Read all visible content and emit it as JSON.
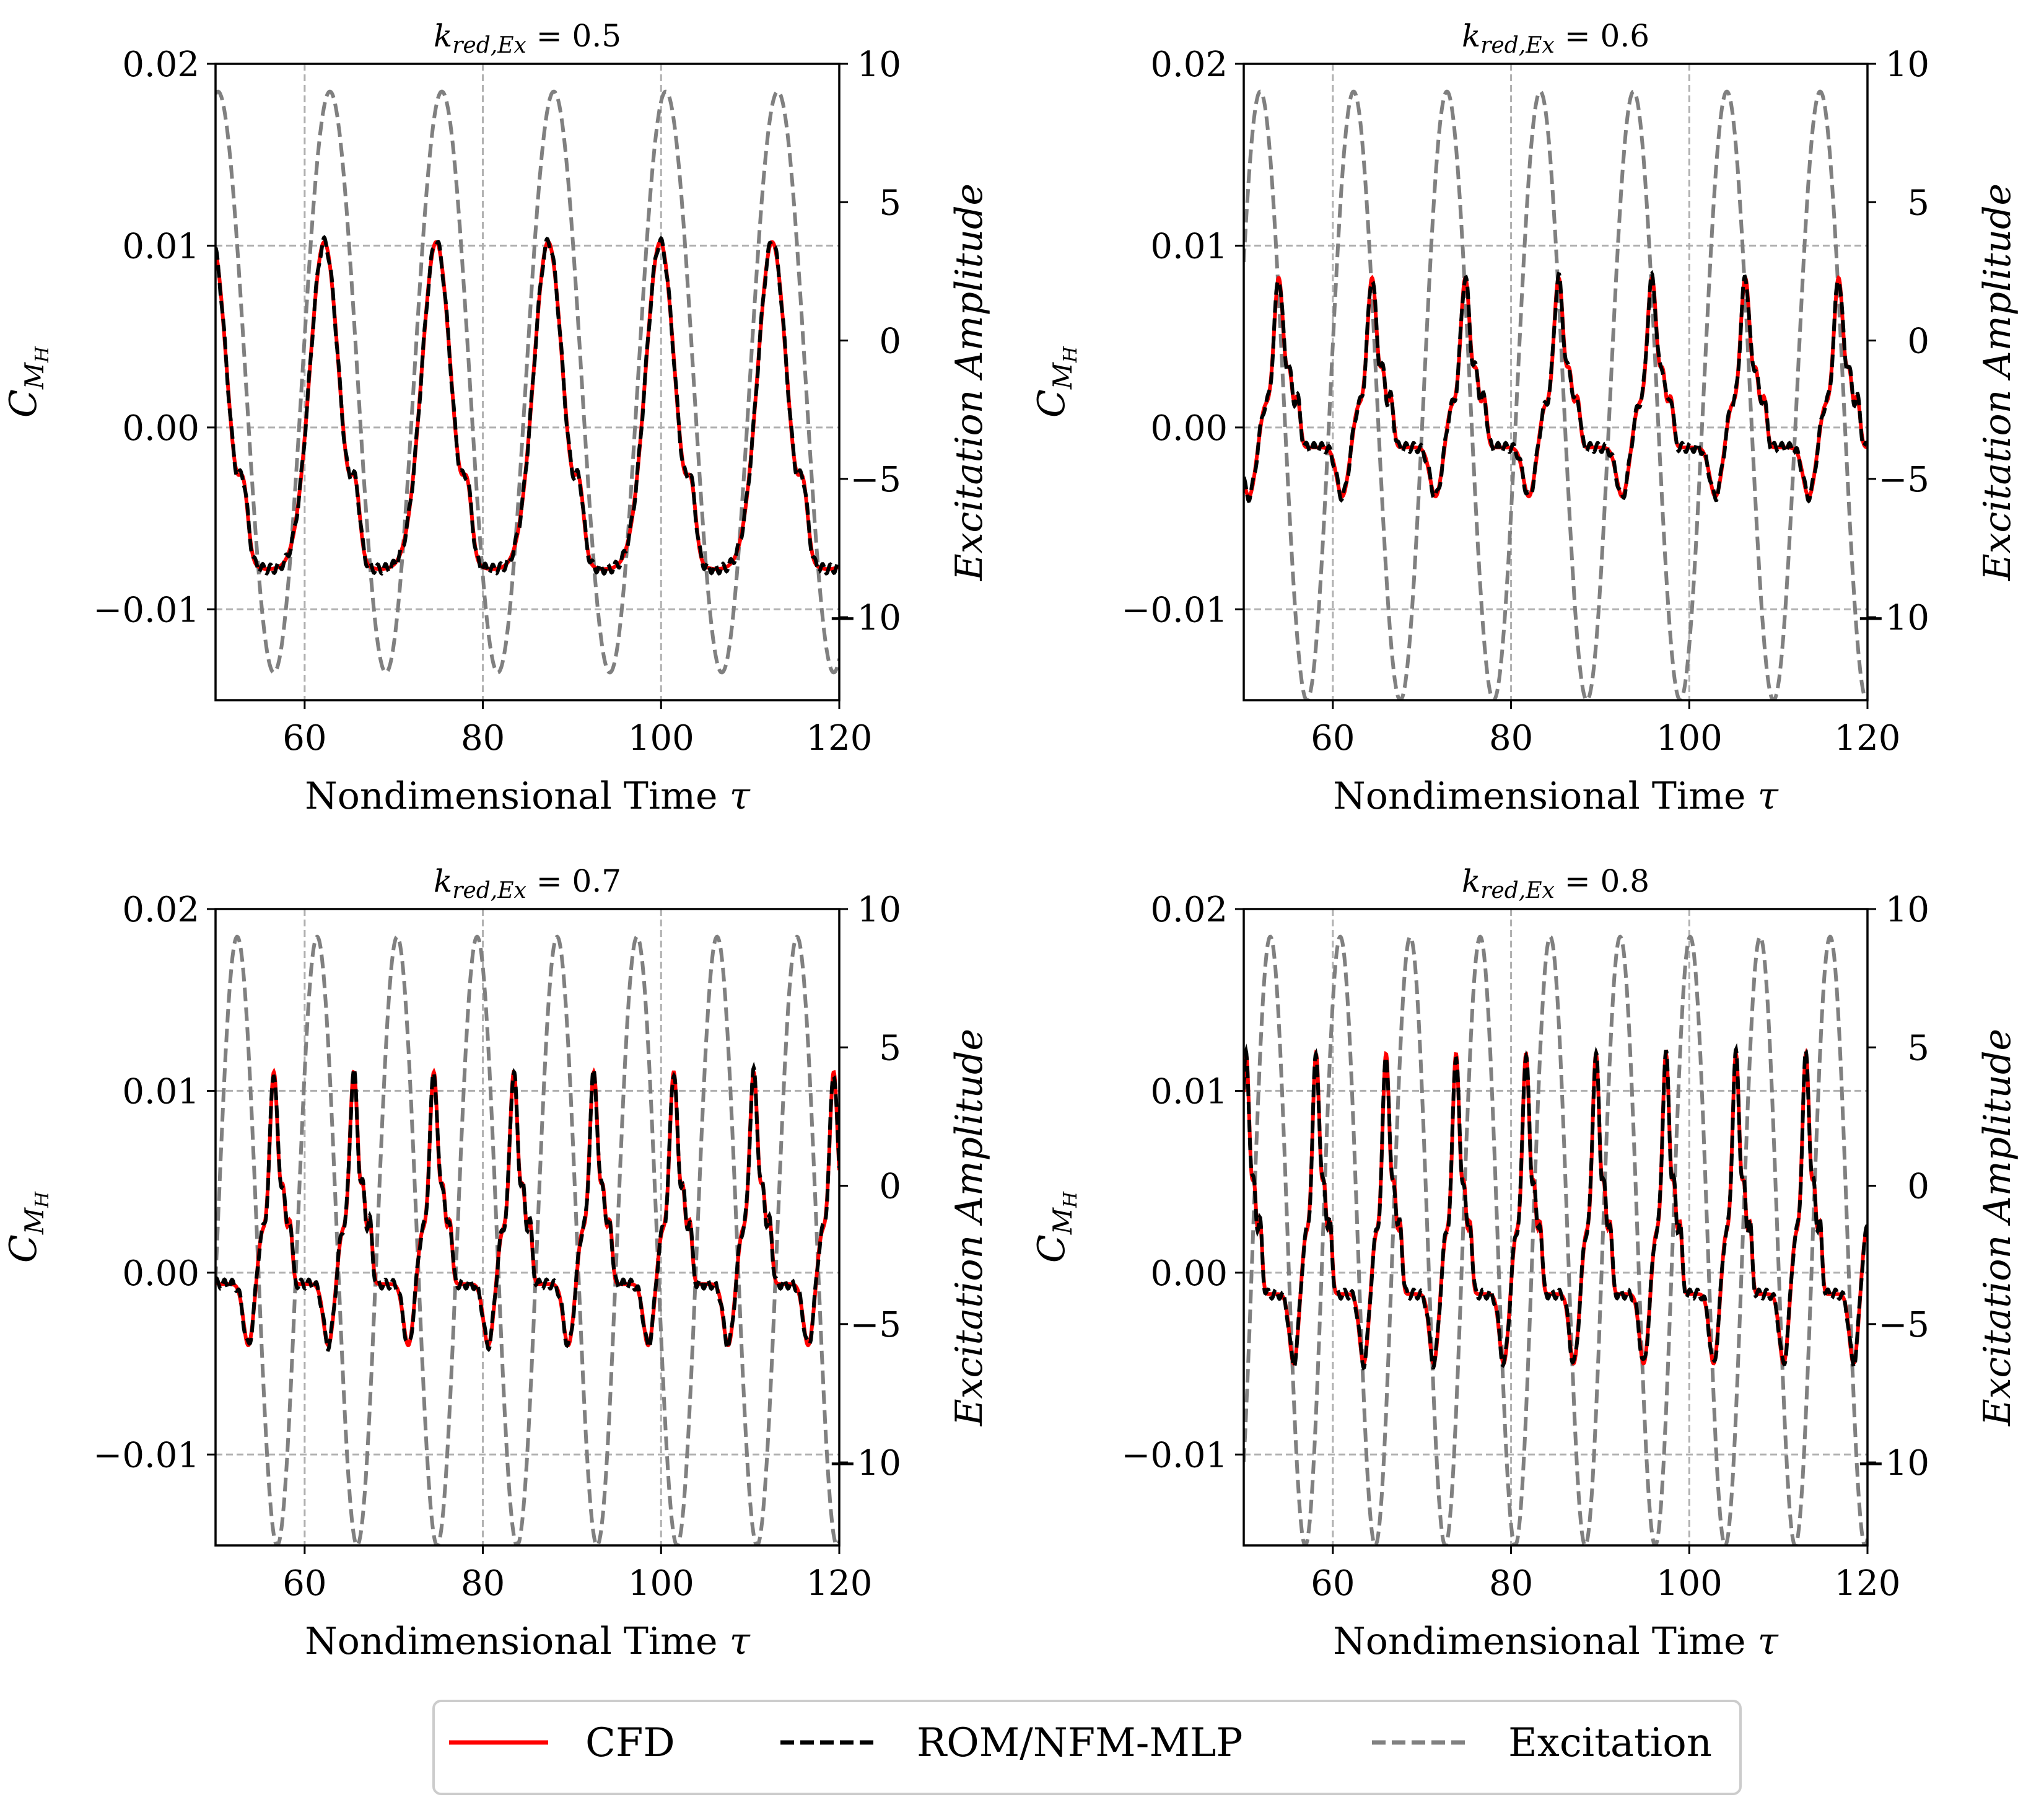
{
  "figure": {
    "xlabel": "Nondimensional Time",
    "xlabel_symbol": "τ",
    "ylabel_main": "C",
    "ylabel_sub": "M",
    "ylabel_subsub": "H",
    "ylabel_right": "Excitation Amplitude",
    "title_prefix": "k",
    "title_sub": "red,Ex",
    "title_eq": " = "
  },
  "legend": {
    "entries": [
      {
        "label": "CFD",
        "color": "#ff0000",
        "style": "solid"
      },
      {
        "label": "ROM/NFM-MLP",
        "color": "#000000",
        "style": "dashed"
      },
      {
        "label": "Excitation",
        "color": "#808080",
        "style": "dashed"
      }
    ]
  },
  "chart_data": [
    {
      "type": "line",
      "title_value": "0.5",
      "k": 0.5,
      "xlim": [
        50,
        120
      ],
      "ylim": [
        -0.015,
        0.02
      ],
      "y2lim": [
        -13,
        10
      ],
      "xticks": [
        60,
        80,
        100,
        120
      ],
      "xtick_labels": [
        "60",
        "80",
        "100",
        "120"
      ],
      "yticks": [
        -0.01,
        0.0,
        0.01,
        0.02
      ],
      "ytick_labels": [
        "−0.01",
        "0.00",
        "0.01",
        "0.02"
      ],
      "y2ticks": [
        -10,
        -5,
        0,
        5,
        10
      ],
      "y2tick_labels": [
        "−10",
        "−5",
        "0",
        "5",
        "10"
      ],
      "grid": true,
      "response": {
        "mean": 0.0012,
        "amplitude": 0.009,
        "max": 0.0103,
        "min": -0.008,
        "phase": 0.55,
        "shape": "smooth"
      },
      "excitation": {
        "amplitude": 10.5,
        "offset": -1.5,
        "phase": 0.0
      }
    },
    {
      "type": "line",
      "title_value": "0.6",
      "k": 0.6,
      "xlim": [
        50,
        120
      ],
      "ylim": [
        -0.015,
        0.02
      ],
      "y2lim": [
        -13,
        10
      ],
      "xticks": [
        60,
        80,
        100,
        120
      ],
      "xtick_labels": [
        "60",
        "80",
        "100",
        "120"
      ],
      "yticks": [
        -0.01,
        0.0,
        0.01,
        0.02
      ],
      "ytick_labels": [
        "−0.01",
        "0.00",
        "0.01",
        "0.02"
      ],
      "y2ticks": [
        -10,
        -5,
        0,
        5,
        10
      ],
      "y2tick_labels": [
        "−10",
        "−5",
        "0",
        "5",
        "10"
      ],
      "grid": true,
      "response": {
        "mean": 0.0022,
        "amplitude": 0.006,
        "max": 0.0083,
        "min": -0.0035,
        "phase": 0.35,
        "shape": "peaked"
      },
      "excitation": {
        "amplitude": 11.0,
        "offset": -2.0,
        "phase": 0.3
      }
    },
    {
      "type": "line",
      "title_value": "0.7",
      "k": 0.7,
      "xlim": [
        50,
        120
      ],
      "ylim": [
        -0.015,
        0.02
      ],
      "y2lim": [
        -13,
        10
      ],
      "xticks": [
        60,
        80,
        100,
        120
      ],
      "xtick_labels": [
        "60",
        "80",
        "100",
        "120"
      ],
      "yticks": [
        -0.01,
        0.0,
        0.01,
        0.02
      ],
      "ytick_labels": [
        "−0.01",
        "0.00",
        "0.01",
        "0.02"
      ],
      "y2ticks": [
        -10,
        -5,
        0,
        5,
        10
      ],
      "y2tick_labels": [
        "−10",
        "−5",
        "0",
        "5",
        "10"
      ],
      "grid": true,
      "response": {
        "mean": 0.0035,
        "amplitude": 0.0075,
        "max": 0.0115,
        "min": -0.0037,
        "phase": 0.2,
        "shape": "peaked"
      },
      "excitation": {
        "amplitude": 11.0,
        "offset": -2.0,
        "phase": 1.0
      }
    },
    {
      "type": "line",
      "title_value": "0.8",
      "k": 0.8,
      "xlim": [
        50,
        120
      ],
      "ylim": [
        -0.015,
        0.02
      ],
      "y2lim": [
        -13,
        10
      ],
      "xticks": [
        60,
        80,
        100,
        120
      ],
      "xtick_labels": [
        "60",
        "80",
        "100",
        "120"
      ],
      "yticks": [
        -0.01,
        0.0,
        0.01,
        0.02
      ],
      "ytick_labels": [
        "−0.01",
        "0.00",
        "0.01",
        "0.02"
      ],
      "y2ticks": [
        -10,
        -5,
        0,
        5,
        10
      ],
      "y2tick_labels": [
        "−10",
        "−5",
        "0",
        "5",
        "10"
      ],
      "grid": true,
      "response": {
        "mean": 0.0035,
        "amplitude": 0.0085,
        "max": 0.0122,
        "min": -0.0053,
        "phase": 0.1,
        "shape": "peaked"
      },
      "excitation": {
        "amplitude": 11.0,
        "offset": -2.0,
        "phase": 1.6
      }
    }
  ]
}
